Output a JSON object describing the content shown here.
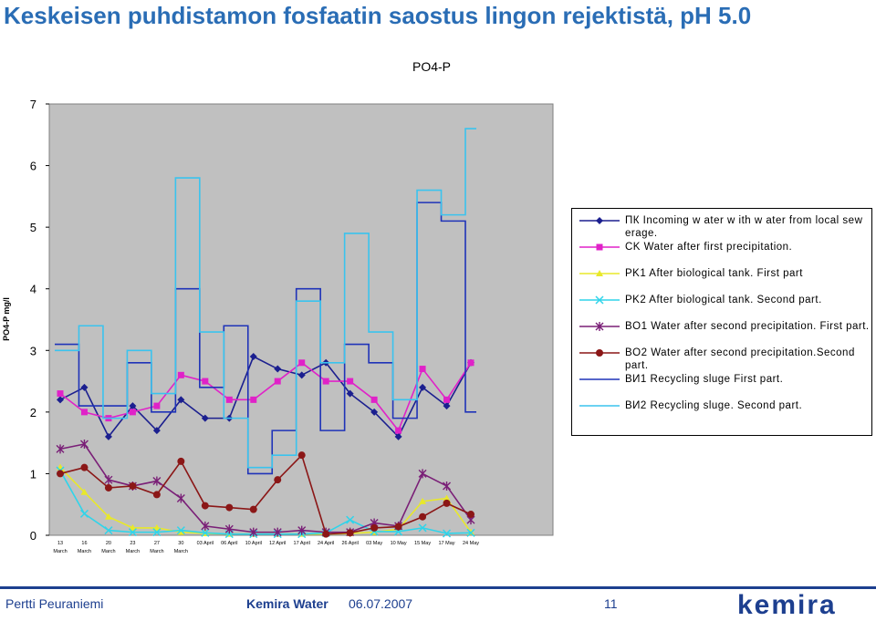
{
  "slide": {
    "title": "Keskeisen puhdistamon fosfaatin saostus lingon rejektistä, pH 5.0",
    "footer_author": "Pertti Peuraniemi",
    "footer_company": "Kemira Water",
    "footer_date": "06.07.2007",
    "footer_page": "11",
    "logo_text": "kemira"
  },
  "chart_data": {
    "type": "line",
    "title": "PO4-P",
    "ylabel": "PO4-P mg/l",
    "xlabel": "",
    "ylim": [
      0,
      7
    ],
    "yticks": [
      0,
      1,
      2,
      3,
      4,
      5,
      6,
      7
    ],
    "categories": [
      "13 March",
      "16 March",
      "20 March",
      "23 March",
      "27 March",
      "30 March",
      "03 April",
      "06 April",
      "10 April",
      "12 April",
      "17 April",
      "24 April",
      "26 April",
      "03 May",
      "10 May",
      "15 May",
      "17 May",
      "24 May"
    ],
    "grid": false,
    "legend_position": "right",
    "series": [
      {
        "name": "ПК Incoming w ater w ith w ater from local sew erage.",
        "style": "line",
        "marker": "diamond",
        "color": "#1b1f8f",
        "values": [
          2.2,
          2.4,
          1.6,
          2.1,
          1.7,
          2.2,
          1.9,
          1.9,
          2.9,
          2.7,
          2.6,
          2.8,
          2.3,
          2.0,
          1.6,
          2.4,
          2.1,
          2.8
        ]
      },
      {
        "name": "CK Water after first precipitation.",
        "style": "line",
        "marker": "square",
        "color": "#e022c8",
        "values": [
          2.3,
          2.0,
          1.9,
          2.0,
          2.1,
          2.6,
          2.5,
          2.2,
          2.2,
          2.5,
          2.8,
          2.5,
          2.5,
          2.2,
          1.7,
          2.7,
          2.2,
          2.8
        ]
      },
      {
        "name": "PK1 After biological tank. First part",
        "style": "line",
        "marker": "triangle",
        "color": "#e8e82a",
        "values": [
          1.1,
          0.7,
          0.3,
          0.12,
          0.12,
          0.05,
          0.03,
          0.02,
          0.02,
          0.02,
          0.02,
          0.02,
          0.03,
          0.05,
          0.1,
          0.55,
          0.6,
          0.05
        ]
      },
      {
        "name": "PK2 After biological tank. Second part.",
        "style": "line",
        "marker": "x",
        "color": "#2fd4ea",
        "values": [
          1.05,
          0.35,
          0.08,
          0.05,
          0.05,
          0.08,
          0.04,
          0.02,
          0.02,
          0.02,
          0.02,
          0.04,
          0.25,
          0.06,
          0.06,
          0.12,
          0.03,
          0.04
        ]
      },
      {
        "name": "BO1 Water after second precipitation. First part.",
        "style": "line",
        "marker": "asterisk",
        "color": "#7a1f77",
        "values": [
          1.4,
          1.48,
          0.9,
          0.8,
          0.88,
          0.6,
          0.15,
          0.1,
          0.05,
          0.05,
          0.08,
          0.05,
          0.05,
          0.2,
          0.15,
          1.0,
          0.8,
          0.25
        ]
      },
      {
        "name": "BO2 Water after second precipitation.Second part.",
        "style": "line",
        "marker": "circle",
        "color": "#8b1717",
        "values": [
          1.0,
          1.1,
          0.77,
          0.8,
          0.66,
          1.2,
          0.48,
          0.45,
          0.42,
          0.9,
          1.3,
          0.02,
          0.04,
          0.12,
          0.14,
          0.3,
          0.52,
          0.34
        ]
      },
      {
        "name": "ВИ1 Recycling sluge First part.",
        "style": "step",
        "marker": "none",
        "color": "#1f33b8",
        "values": [
          3.1,
          2.1,
          2.1,
          2.8,
          2.0,
          4.0,
          2.4,
          3.4,
          1.0,
          1.7,
          4.0,
          1.7,
          3.1,
          2.8,
          1.9,
          5.4,
          5.1,
          2.0
        ]
      },
      {
        "name": "ВИ2 Recycling sluge. Second part.",
        "style": "step",
        "marker": "none",
        "color": "#3ac3ee",
        "values": [
          3.0,
          3.4,
          1.9,
          3.0,
          2.3,
          5.8,
          3.3,
          1.9,
          1.1,
          1.3,
          3.8,
          2.8,
          4.9,
          3.3,
          2.2,
          5.6,
          5.2,
          6.6
        ]
      }
    ]
  }
}
